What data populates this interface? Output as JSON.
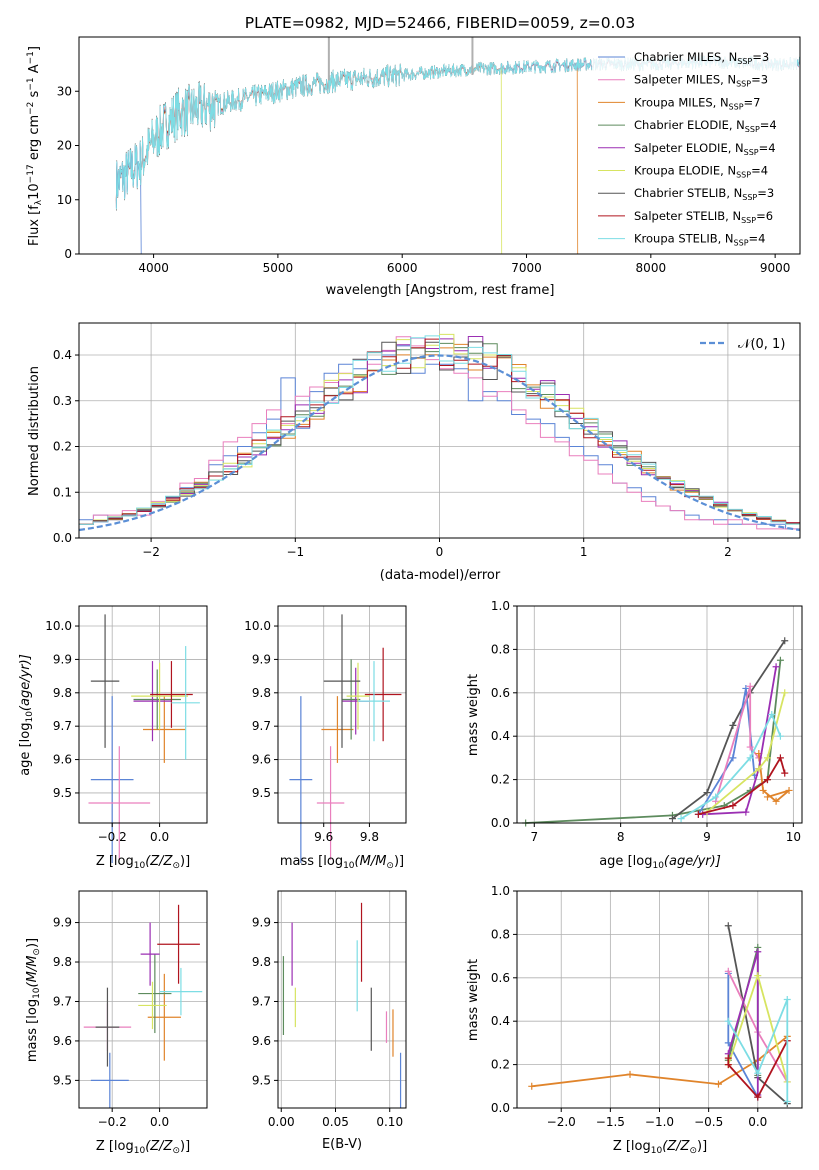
{
  "figure_title": "PLATE=0982, MJD=52466, FIBERID=0059, z=0.03",
  "series": [
    {
      "key": "chab_miles",
      "color": "#5b84d6"
    },
    {
      "key": "salp_miles",
      "color": "#e97fbd"
    },
    {
      "key": "krou_miles",
      "color": "#e0842b"
    },
    {
      "key": "chab_elodie",
      "color": "#5d8b5d"
    },
    {
      "key": "salp_elodie",
      "color": "#9b2fb3"
    },
    {
      "key": "krou_elodie",
      "color": "#d7e461"
    },
    {
      "key": "chab_stelib",
      "color": "#555555"
    },
    {
      "key": "salp_stelib",
      "color": "#b0141f"
    },
    {
      "key": "krou_stelib",
      "color": "#7ddde4"
    }
  ],
  "panels": {
    "spectrum": {
      "xlabel": "wavelength [Angstrom, rest frame]",
      "ylabel_pre": "Flux [f",
      "ylabel_sub": "λ",
      "ylabel_mid": "10",
      "ylabel_sup1": "−17",
      "ylabel_mid2": " erg cm",
      "ylabel_sup2": "−2",
      "ylabel_mid3": " s",
      "ylabel_sup3": "−1",
      "ylabel_post": " A",
      "ylabel_sup4": "−1",
      "ylabel_end": "]",
      "xticks": [
        "4000",
        "5000",
        "6000",
        "7000",
        "8000",
        "9000"
      ],
      "yticks": [
        "0",
        "10",
        "20",
        "30"
      ],
      "legend": [
        {
          "name": "Chabrier MILES, N",
          "sub": "SSP",
          "val": "=3"
        },
        {
          "name": "Salpeter MILES, N",
          "sub": "SSP",
          "val": "=3"
        },
        {
          "name": "Kroupa MILES, N",
          "sub": "SSP",
          "val": "=7"
        },
        {
          "name": "Chabrier ELODIE, N",
          "sub": "SSP",
          "val": "=4"
        },
        {
          "name": "Salpeter ELODIE, N",
          "sub": "SSP",
          "val": "=4"
        },
        {
          "name": "Kroupa ELODIE, N",
          "sub": "SSP",
          "val": "=4"
        },
        {
          "name": "Chabrier STELIB, N",
          "sub": "SSP",
          "val": "=3"
        },
        {
          "name": "Salpeter STELIB, N",
          "sub": "SSP",
          "val": "=6"
        },
        {
          "name": "Kroupa STELIB, N",
          "sub": "SSP",
          "val": "=4"
        }
      ]
    },
    "hist": {
      "xlabel": "(data-model)/error",
      "ylabel": "Normed distribution",
      "xticks": [
        "−2",
        "−1",
        "0",
        "1",
        "2"
      ],
      "yticks": [
        "0.0",
        "0.1",
        "0.2",
        "0.3",
        "0.4"
      ],
      "legend_label": "𝒩(0, 1)"
    },
    "age_z": {
      "xlabel_pre": "Z [log",
      "xlabel_sub": "10",
      "xlabel_post": "(Z/Z",
      "xlabel_sub2": "⊙",
      "xlabel_end": ")]",
      "ylabel_pre": "age  [log",
      "ylabel_sub": "10",
      "ylabel_post": "(age/yr)]",
      "xticks": [
        "−0.2",
        "0.0"
      ],
      "yticks": [
        "9.5",
        "9.6",
        "9.7",
        "9.8",
        "9.9",
        "10.0"
      ]
    },
    "age_mass": {
      "xlabel_pre": "mass [log",
      "xlabel_sub": "10",
      "xlabel_post": "(M/M",
      "xlabel_sub2": "⊙",
      "xlabel_end": ")]",
      "xticks": [
        "9.6",
        "9.8"
      ],
      "yticks": [
        "9.5",
        "9.6",
        "9.7",
        "9.8",
        "9.9",
        "10.0"
      ]
    },
    "mw_age": {
      "xlabel_pre": "age  [log",
      "xlabel_sub": "10",
      "xlabel_post": "(age/yr)]",
      "ylabel": "mass weight",
      "xticks": [
        "7",
        "8",
        "9",
        "10"
      ],
      "yticks": [
        "0.0",
        "0.2",
        "0.4",
        "0.6",
        "0.8",
        "1.0"
      ]
    },
    "mass_z": {
      "xlabel_pre": "Z [log",
      "xlabel_sub": "10",
      "xlabel_post": "(Z/Z",
      "xlabel_sub2": "⊙",
      "xlabel_end": ")]",
      "ylabel_pre": "mass [log",
      "ylabel_sub": "10",
      "ylabel_post": "(M/M",
      "ylabel_sub2": "⊙",
      "ylabel_end": ")]",
      "xticks": [
        "−0.2",
        "0.0"
      ],
      "yticks": [
        "9.5",
        "9.6",
        "9.7",
        "9.8",
        "9.9"
      ]
    },
    "mass_ebv": {
      "xlabel": "E(B-V)",
      "xticks": [
        "0.00",
        "0.05",
        "0.10"
      ],
      "yticks": [
        "9.5",
        "9.6",
        "9.7",
        "9.8",
        "9.9"
      ]
    },
    "mw_z": {
      "xlabel_pre": "Z [log",
      "xlabel_sub": "10",
      "xlabel_post": "(Z/Z",
      "xlabel_sub2": "⊙",
      "xlabel_end": ")]",
      "ylabel": "mass weight",
      "xticks": [
        "−2.0",
        "−1.5",
        "−1.0",
        "−0.5",
        "0.0"
      ],
      "yticks": [
        "0.0",
        "0.2",
        "0.4",
        "0.6",
        "0.8",
        "1.0"
      ]
    }
  },
  "chart_data": [
    {
      "id": "spectrum",
      "type": "line",
      "x_range": [
        3400,
        9200
      ],
      "y_range": [
        0,
        40
      ],
      "data_range_x": [
        3700,
        9200
      ],
      "note_shape": [
        [
          3700,
          13
        ],
        [
          3800,
          15
        ],
        [
          3900,
          17
        ],
        [
          4000,
          21
        ],
        [
          4100,
          24
        ],
        [
          4200,
          26
        ],
        [
          4400,
          27
        ],
        [
          4600,
          28
        ],
        [
          4800,
          29
        ],
        [
          5000,
          30
        ],
        [
          5200,
          31
        ],
        [
          5500,
          32
        ],
        [
          6000,
          33
        ],
        [
          6500,
          34
        ],
        [
          7000,
          34.5
        ],
        [
          7500,
          35
        ],
        [
          8000,
          35
        ],
        [
          8500,
          35.5
        ],
        [
          9000,
          35
        ]
      ],
      "cutoffs": [
        {
          "series": "chab_miles",
          "x": 3900
        },
        {
          "series": "krou_elodie",
          "x": 6800
        },
        {
          "series": "krou_miles",
          "x": 7410
        }
      ]
    },
    {
      "id": "hist",
      "type": "histogram",
      "x_range": [
        -2.5,
        2.5
      ],
      "y_range": [
        0,
        0.47
      ],
      "bin_width": 0.1,
      "normal_curve": {
        "mu": 0,
        "sigma": 1
      },
      "peak_values_by_series": {
        "chab_miles": [
          0.04,
          0.05,
          0.04,
          0.05,
          0.06,
          0.07,
          0.09,
          0.11,
          0.12,
          0.16,
          0.18,
          0.2,
          0.23,
          0.26,
          0.35,
          0.24,
          0.32,
          0.36,
          0.38,
          0.37,
          0.39,
          0.4,
          0.42,
          0.36,
          0.38,
          0.38,
          0.37,
          0.3,
          0.32,
          0.3,
          0.27,
          0.26,
          0.25,
          0.22,
          0.2,
          0.18,
          0.16,
          0.12,
          0.11,
          0.09,
          0.07,
          0.06,
          0.05,
          0.04,
          0.04,
          0.03,
          0.03,
          0.03,
          0.03,
          0.02
        ],
        "salp_miles": [
          0.03,
          0.05,
          0.05,
          0.06,
          0.05,
          0.08,
          0.09,
          0.12,
          0.13,
          0.17,
          0.21,
          0.22,
          0.25,
          0.28,
          0.25,
          0.31,
          0.33,
          0.34,
          0.36,
          0.39,
          0.38,
          0.41,
          0.44,
          0.42,
          0.39,
          0.37,
          0.36,
          0.35,
          0.31,
          0.32,
          0.28,
          0.25,
          0.22,
          0.21,
          0.18,
          0.17,
          0.14,
          0.12,
          0.1,
          0.08,
          0.07,
          0.06,
          0.04,
          0.04,
          0.03,
          0.04,
          0.03,
          0.02,
          0.02,
          0.02
        ]
      }
    },
    {
      "id": "age_z",
      "type": "errorbar",
      "x_range": [
        -0.34,
        0.2
      ],
      "y_range": [
        9.41,
        10.06
      ],
      "points": [
        {
          "series": "chab_miles",
          "x": -0.2,
          "y": 9.54,
          "xerr": 0.09,
          "yerr": 0.25
        },
        {
          "series": "salp_miles",
          "x": -0.17,
          "y": 9.47,
          "xerr": 0.13,
          "yerr": 0.17
        },
        {
          "series": "krou_miles",
          "x": 0.02,
          "y": 9.69,
          "xerr": 0.09,
          "yerr": 0.1
        },
        {
          "series": "chab_elodie",
          "x": -0.01,
          "y": 9.78,
          "xerr": 0.1,
          "yerr": 0.09
        },
        {
          "series": "salp_elodie",
          "x": -0.03,
          "y": 9.775,
          "xerr": 0.08,
          "yerr": 0.12
        },
        {
          "series": "krou_elodie",
          "x": 0.0,
          "y": 9.79,
          "xerr": 0.12,
          "yerr": 0.1
        },
        {
          "series": "chab_stelib",
          "x": -0.23,
          "y": 9.835,
          "xerr": 0.06,
          "yerr": 0.2
        },
        {
          "series": "salp_stelib",
          "x": 0.05,
          "y": 9.795,
          "xerr": 0.09,
          "yerr": 0.1
        },
        {
          "series": "krou_stelib",
          "x": 0.11,
          "y": 9.77,
          "xerr": 0.06,
          "yerr": 0.17
        }
      ]
    },
    {
      "id": "age_mass",
      "type": "errorbar",
      "x_range": [
        9.4,
        9.96
      ],
      "y_range": [
        9.41,
        10.06
      ],
      "points": [
        {
          "series": "chab_miles",
          "x": 9.5,
          "y": 9.54,
          "xerr": 0.05,
          "yerr": 0.25
        },
        {
          "series": "salp_miles",
          "x": 9.63,
          "y": 9.47,
          "xerr": 0.06,
          "yerr": 0.17
        },
        {
          "series": "krou_miles",
          "x": 9.66,
          "y": 9.69,
          "xerr": 0.07,
          "yerr": 0.1
        },
        {
          "series": "chab_elodie",
          "x": 9.72,
          "y": 9.78,
          "xerr": 0.04,
          "yerr": 0.12
        },
        {
          "series": "salp_elodie",
          "x": 9.74,
          "y": 9.775,
          "xerr": 0.06,
          "yerr": 0.1
        },
        {
          "series": "krou_elodie",
          "x": 9.75,
          "y": 9.79,
          "xerr": 0.05,
          "yerr": 0.1
        },
        {
          "series": "chab_stelib",
          "x": 9.68,
          "y": 9.835,
          "xerr": 0.08,
          "yerr": 0.2
        },
        {
          "series": "salp_stelib",
          "x": 9.86,
          "y": 9.795,
          "xerr": 0.08,
          "yerr": 0.14
        },
        {
          "series": "krou_stelib",
          "x": 9.82,
          "y": 9.775,
          "xerr": 0.07,
          "yerr": 0.12
        }
      ]
    },
    {
      "id": "mw_age",
      "type": "line",
      "x_range": [
        6.8,
        10.1
      ],
      "y_range": [
        0,
        1
      ],
      "series_points": {
        "chab_elodie": [
          [
            6.9,
            0.0
          ],
          [
            8.6,
            0.035
          ],
          [
            9.2,
            0.08
          ],
          [
            9.5,
            0.15
          ],
          [
            9.7,
            0.2
          ],
          [
            9.85,
            0.75
          ]
        ],
        "chab_stelib": [
          [
            8.6,
            0.02
          ],
          [
            9.0,
            0.14
          ],
          [
            9.3,
            0.45
          ],
          [
            9.5,
            0.6
          ],
          [
            9.9,
            0.84
          ]
        ],
        "chab_miles": [
          [
            8.9,
            0.04
          ],
          [
            9.3,
            0.3
          ],
          [
            9.45,
            0.62
          ],
          [
            9.55,
            0.22
          ]
        ],
        "salp_miles": [
          [
            9.1,
            0.1
          ],
          [
            9.5,
            0.63
          ],
          [
            9.5,
            0.35
          ],
          [
            9.6,
            0.3
          ]
        ],
        "krou_miles": [
          [
            9.6,
            0.32
          ],
          [
            9.65,
            0.15
          ],
          [
            9.8,
            0.1
          ],
          [
            9.95,
            0.15
          ],
          [
            9.7,
            0.12
          ]
        ],
        "salp_elodie": [
          [
            8.95,
            0.04
          ],
          [
            9.45,
            0.05
          ],
          [
            9.6,
            0.25
          ],
          [
            9.8,
            0.72
          ]
        ],
        "krou_elodie": [
          [
            9.0,
            0.05
          ],
          [
            9.6,
            0.25
          ],
          [
            9.7,
            0.3
          ],
          [
            9.9,
            0.6
          ]
        ],
        "salp_stelib": [
          [
            8.9,
            0.04
          ],
          [
            9.3,
            0.08
          ],
          [
            9.7,
            0.2
          ],
          [
            9.85,
            0.3
          ],
          [
            9.9,
            0.23
          ]
        ],
        "krou_stelib": [
          [
            8.7,
            0.02
          ],
          [
            9.1,
            0.12
          ],
          [
            9.5,
            0.3
          ],
          [
            9.75,
            0.5
          ],
          [
            9.85,
            0.4
          ]
        ]
      }
    },
    {
      "id": "mass_z",
      "type": "errorbar",
      "x_range": [
        -0.34,
        0.2
      ],
      "y_range": [
        9.43,
        9.98
      ],
      "points": [
        {
          "series": "chab_miles",
          "x": -0.21,
          "y": 9.5,
          "xerr": 0.08,
          "yerr": 0.07
        },
        {
          "series": "salp_miles",
          "x": -0.22,
          "y": 9.635,
          "xerr": 0.1,
          "yerr": 0.06
        },
        {
          "series": "krou_miles",
          "x": 0.02,
          "y": 9.66,
          "xerr": 0.07,
          "yerr": 0.11
        },
        {
          "series": "chab_elodie",
          "x": -0.02,
          "y": 9.72,
          "xerr": 0.07,
          "yerr": 0.1
        },
        {
          "series": "salp_elodie",
          "x": -0.04,
          "y": 9.82,
          "xerr": 0.04,
          "yerr": 0.08
        },
        {
          "series": "krou_elodie",
          "x": -0.03,
          "y": 9.69,
          "xerr": 0.06,
          "yerr": 0.06
        },
        {
          "series": "chab_stelib",
          "x": -0.22,
          "y": 9.635,
          "xerr": 0.05,
          "yerr": 0.1
        },
        {
          "series": "salp_stelib",
          "x": 0.08,
          "y": 9.845,
          "xerr": 0.09,
          "yerr": 0.1
        },
        {
          "series": "krou_stelib",
          "x": 0.09,
          "y": 9.725,
          "xerr": 0.09,
          "yerr": 0.06
        }
      ]
    },
    {
      "id": "mass_ebv",
      "type": "errorbar",
      "x_range": [
        -0.003,
        0.115
      ],
      "y_range": [
        9.43,
        9.98
      ],
      "points": [
        {
          "series": "chab_miles",
          "x": 0.11,
          "y": 9.5,
          "yerr": 0.07
        },
        {
          "series": "salp_miles",
          "x": 0.097,
          "y": 9.635,
          "yerr": 0.04
        },
        {
          "series": "krou_miles",
          "x": 0.103,
          "y": 9.62,
          "yerr": 0.06
        },
        {
          "series": "chab_elodie",
          "x": 0.002,
          "y": 9.715,
          "yerr": 0.1
        },
        {
          "series": "salp_elodie",
          "x": 0.01,
          "y": 9.82,
          "yerr": 0.08
        },
        {
          "series": "krou_elodie",
          "x": 0.013,
          "y": 9.685,
          "yerr": 0.05
        },
        {
          "series": "chab_stelib",
          "x": 0.083,
          "y": 9.655,
          "yerr": 0.08
        },
        {
          "series": "salp_stelib",
          "x": 0.074,
          "y": 9.85,
          "yerr": 0.1
        },
        {
          "series": "krou_stelib",
          "x": 0.07,
          "y": 9.765,
          "yerr": 0.09
        }
      ]
    },
    {
      "id": "mw_z",
      "type": "line",
      "x_range": [
        -2.45,
        0.45
      ],
      "y_range": [
        0,
        1
      ],
      "series_points": {
        "krou_miles": [
          [
            -2.3,
            0.1
          ],
          [
            -1.3,
            0.155
          ],
          [
            -0.4,
            0.11
          ],
          [
            0.0,
            0.22
          ],
          [
            0.3,
            0.33
          ]
        ],
        "chab_stelib": [
          [
            -0.3,
            0.84
          ],
          [
            0.0,
            0.14
          ],
          [
            0.3,
            0.02
          ]
        ],
        "chab_miles": [
          [
            -0.3,
            0.62
          ],
          [
            -0.3,
            0.3
          ],
          [
            0.0,
            0.05
          ]
        ],
        "salp_miles": [
          [
            -0.3,
            0.63
          ],
          [
            0.0,
            0.35
          ],
          [
            0.3,
            0.12
          ]
        ],
        "chab_elodie": [
          [
            -0.3,
            0.22
          ],
          [
            0.0,
            0.74
          ],
          [
            0.0,
            0.15
          ]
        ],
        "salp_elodie": [
          [
            -0.3,
            0.25
          ],
          [
            0.0,
            0.72
          ],
          [
            0.0,
            0.06
          ]
        ],
        "krou_elodie": [
          [
            -0.3,
            0.2
          ],
          [
            0.0,
            0.61
          ],
          [
            0.3,
            0.12
          ]
        ],
        "salp_stelib": [
          [
            -0.3,
            0.23
          ],
          [
            -0.3,
            0.2
          ],
          [
            0.0,
            0.05
          ],
          [
            0.3,
            0.31
          ]
        ],
        "krou_stelib": [
          [
            -0.3,
            0.4
          ],
          [
            0.0,
            0.16
          ],
          [
            0.3,
            0.5
          ],
          [
            0.3,
            0.03
          ]
        ]
      }
    }
  ]
}
